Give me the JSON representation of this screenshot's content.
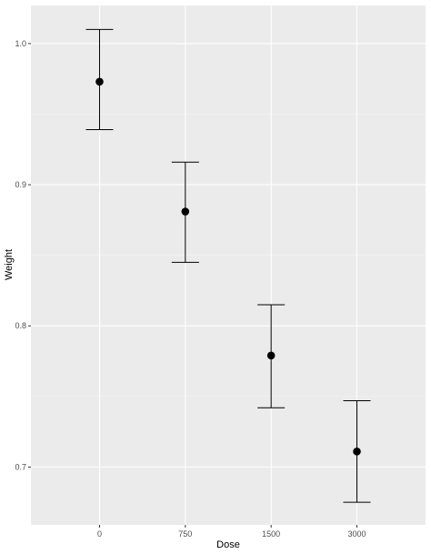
{
  "chart_data": {
    "type": "scatter",
    "title": "",
    "xlabel": "Dose",
    "ylabel": "Weight",
    "categories": [
      "0",
      "750",
      "1500",
      "3000"
    ],
    "series": [
      {
        "values": [
          0.973,
          0.881,
          0.779,
          0.711
        ],
        "lower": [
          0.939,
          0.845,
          0.742,
          0.675
        ],
        "upper": [
          1.01,
          0.916,
          0.815,
          0.747
        ]
      }
    ],
    "yticks": [
      0.7,
      0.8,
      0.9,
      1.0
    ],
    "ytick_labels": [
      "0.7",
      "0.8",
      "0.9",
      "1.0"
    ],
    "ylim": [
      0.659,
      1.027
    ],
    "grid": true,
    "legend": "none",
    "colors": {
      "panel": "#ebebeb",
      "grid_major": "#ffffff",
      "grid_minor": "#f3f3f3",
      "marker": "#000000",
      "errorbar": "#000000"
    }
  }
}
